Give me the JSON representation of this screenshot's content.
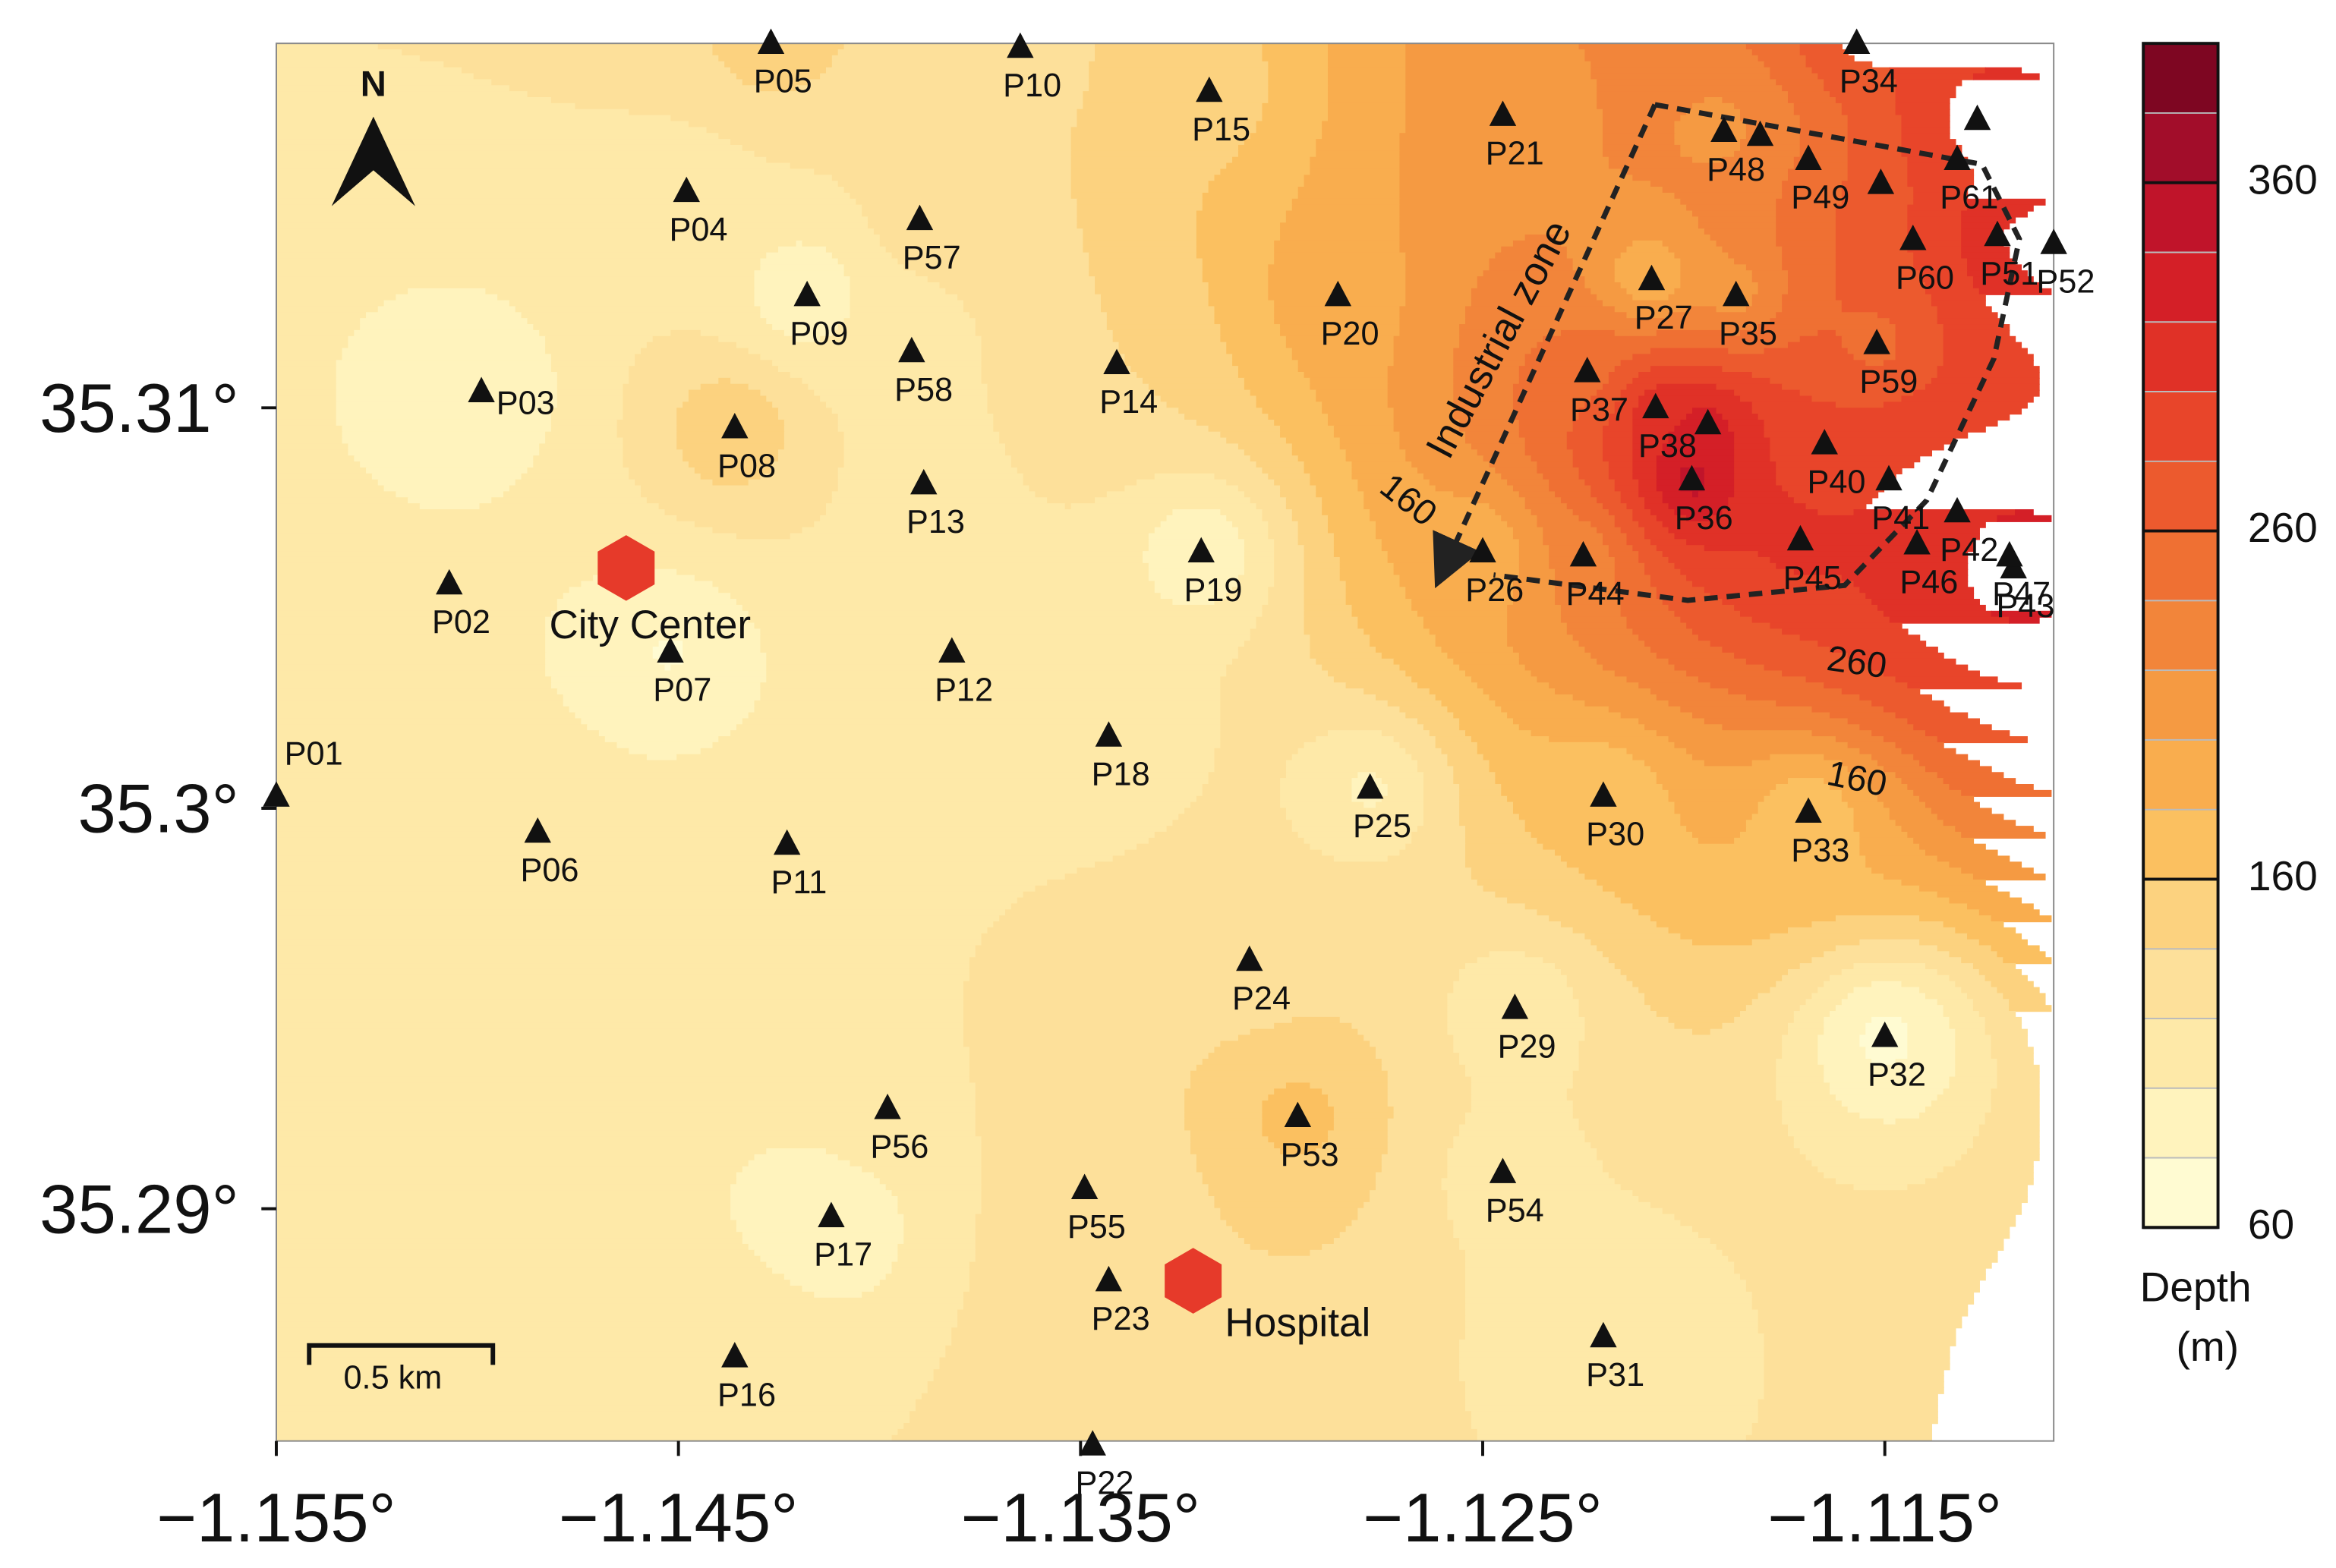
{
  "map": {
    "xlim": [
      -1.155,
      -1.1108
    ],
    "ylim": [
      35.2842,
      35.3191
    ],
    "xticks": [
      {
        "value": -1.155,
        "label": "−1.155°"
      },
      {
        "value": -1.145,
        "label": "−1.145°"
      },
      {
        "value": -1.135,
        "label": "−1.135°"
      },
      {
        "value": -1.125,
        "label": "−1.125°"
      },
      {
        "value": -1.115,
        "label": "−1.115°"
      }
    ],
    "yticks": [
      {
        "value": 35.31,
        "label": "35.31°"
      },
      {
        "value": 35.3,
        "label": "35.3°"
      },
      {
        "value": 35.29,
        "label": "35.29°"
      }
    ],
    "north_label": "N",
    "scale_bar_label": "0.5 km",
    "zone_label": "Industrial zone",
    "contour_labels": [
      "160",
      "260",
      "160"
    ],
    "landmarks": [
      {
        "label": "City Center",
        "lon": -1.1463,
        "lat": 35.306,
        "color": "#e63a2a"
      },
      {
        "label": "Hospital",
        "lon": -1.1322,
        "lat": 35.2882,
        "color": "#e63a2a"
      }
    ],
    "stations": [
      {
        "label": "P01",
        "lon": -1.155,
        "lat": 35.3003,
        "depth": 110
      },
      {
        "label": "P02",
        "lon": -1.1507,
        "lat": 35.3056,
        "depth": 100
      },
      {
        "label": "P03",
        "lon": -1.1499,
        "lat": 35.3104,
        "depth": 85
      },
      {
        "label": "P04",
        "lon": -1.1448,
        "lat": 35.3154,
        "depth": 110
      },
      {
        "label": "P05",
        "lon": -1.1427,
        "lat": 35.3191,
        "depth": 150
      },
      {
        "label": "P06",
        "lon": -1.1485,
        "lat": 35.2994,
        "depth": 110
      },
      {
        "label": "P07",
        "lon": -1.1452,
        "lat": 35.3039,
        "depth": 75
      },
      {
        "label": "P08",
        "lon": -1.1436,
        "lat": 35.3095,
        "depth": 165
      },
      {
        "label": "P09",
        "lon": -1.1418,
        "lat": 35.3128,
        "depth": 75
      },
      {
        "label": "P10",
        "lon": -1.1365,
        "lat": 35.319,
        "depth": 130
      },
      {
        "label": "P11",
        "lon": -1.1423,
        "lat": 35.2991,
        "depth": 110
      },
      {
        "label": "P12",
        "lon": -1.1382,
        "lat": 35.3039,
        "depth": 100
      },
      {
        "label": "P13",
        "lon": -1.1389,
        "lat": 35.3081,
        "depth": 110
      },
      {
        "label": "P14",
        "lon": -1.1341,
        "lat": 35.3111,
        "depth": 140
      },
      {
        "label": "P15",
        "lon": -1.1318,
        "lat": 35.3179,
        "depth": 150
      },
      {
        "label": "P16",
        "lon": -1.1436,
        "lat": 35.2863,
        "depth": 120
      },
      {
        "label": "P17",
        "lon": -1.1412,
        "lat": 35.2898,
        "depth": 75
      },
      {
        "label": "P18",
        "lon": -1.1343,
        "lat": 35.3018,
        "depth": 100
      },
      {
        "label": "P19",
        "lon": -1.132,
        "lat": 35.3064,
        "depth": 75
      },
      {
        "label": "P20",
        "lon": -1.1286,
        "lat": 35.3128,
        "depth": 190
      },
      {
        "label": "P21",
        "lon": -1.1245,
        "lat": 35.3173,
        "depth": 200
      },
      {
        "label": "P22",
        "lon": -1.1347,
        "lat": 35.2841,
        "depth": 130
      },
      {
        "label": "P23",
        "lon": -1.1343,
        "lat": 35.2882,
        "depth": 140
      },
      {
        "label": "P24",
        "lon": -1.1308,
        "lat": 35.2962,
        "depth": 130
      },
      {
        "label": "P25",
        "lon": -1.1278,
        "lat": 35.3005,
        "depth": 90
      },
      {
        "label": "P26",
        "lon": -1.125,
        "lat": 35.3064,
        "depth": 170
      },
      {
        "label": "P27",
        "lon": -1.1208,
        "lat": 35.3132,
        "depth": 150
      },
      {
        "label": "P29",
        "lon": -1.1242,
        "lat": 35.295,
        "depth": 100
      },
      {
        "label": "P30",
        "lon": -1.122,
        "lat": 35.3003,
        "depth": 160
      },
      {
        "label": "P31",
        "lon": -1.122,
        "lat": 35.2868,
        "depth": 100
      },
      {
        "label": "P32",
        "lon": -1.115,
        "lat": 35.2943,
        "depth": 70
      },
      {
        "label": "P33",
        "lon": -1.1169,
        "lat": 35.2999,
        "depth": 160
      },
      {
        "label": "P34",
        "lon": -1.1157,
        "lat": 35.3191,
        "depth": 290
      },
      {
        "label": "P35",
        "lon": -1.1187,
        "lat": 35.3128,
        "depth": 190
      },
      {
        "label": "P36",
        "lon": -1.1198,
        "lat": 35.3082,
        "depth": 380
      },
      {
        "label": "P37",
        "lon": -1.1224,
        "lat": 35.3109,
        "depth": 240
      },
      {
        "label": "P38",
        "lon": -1.1207,
        "lat": 35.31,
        "depth": 330
      },
      {
        "label": "P40",
        "lon": -1.1165,
        "lat": 35.3091,
        "depth": 280
      },
      {
        "label": "P41",
        "lon": -1.1149,
        "lat": 35.3082,
        "depth": 300
      },
      {
        "label": "P42",
        "lon": -1.1132,
        "lat": 35.3074,
        "depth": 320
      },
      {
        "label": "P43",
        "lon": -1.1118,
        "lat": 35.306,
        "depth": 340
      },
      {
        "label": "P44",
        "lon": -1.1225,
        "lat": 35.3063,
        "depth": 220
      },
      {
        "label": "P45",
        "lon": -1.1171,
        "lat": 35.3067,
        "depth": 310
      },
      {
        "label": "P46",
        "lon": -1.1142,
        "lat": 35.3066,
        "depth": 320
      },
      {
        "label": "P47",
        "lon": -1.1119,
        "lat": 35.3063,
        "depth": 330
      },
      {
        "label": "P48",
        "lon": -1.119,
        "lat": 35.3169,
        "depth": 200
      },
      {
        "label": "P49",
        "lon": -1.1169,
        "lat": 35.3162,
        "depth": 240
      },
      {
        "label": "P51",
        "lon": -1.1122,
        "lat": 35.3143,
        "depth": 330
      },
      {
        "label": "P52",
        "lon": -1.1108,
        "lat": 35.3141,
        "depth": 350
      },
      {
        "label": "P53",
        "lon": -1.1296,
        "lat": 35.2923,
        "depth": 170
      },
      {
        "label": "P54",
        "lon": -1.1245,
        "lat": 35.2909,
        "depth": 110
      },
      {
        "label": "P55",
        "lon": -1.1349,
        "lat": 35.2905,
        "depth": 125
      },
      {
        "label": "P56",
        "lon": -1.1398,
        "lat": 35.2925,
        "depth": 120
      },
      {
        "label": "P57",
        "lon": -1.139,
        "lat": 35.3147,
        "depth": 130
      },
      {
        "label": "P58",
        "lon": -1.1392,
        "lat": 35.3114,
        "depth": 110
      },
      {
        "label": "P59",
        "lon": -1.1152,
        "lat": 35.3116,
        "depth": 240
      },
      {
        "label": "P60",
        "lon": -1.1143,
        "lat": 35.3142,
        "depth": 280
      },
      {
        "label": "P61",
        "lon": -1.1132,
        "lat": 35.3162,
        "depth": 300
      },
      {
        "label": null,
        "lon": -1.1194,
        "lat": 35.3096,
        "depth": 350
      },
      {
        "label": null,
        "lon": -1.1181,
        "lat": 35.3168,
        "depth": 220
      },
      {
        "label": null,
        "lon": -1.1151,
        "lat": 35.3156,
        "depth": 270
      },
      {
        "label": null,
        "lon": -1.1127,
        "lat": 35.3172,
        "depth": 320
      }
    ],
    "colorbar": {
      "lim": [
        60,
        400
      ],
      "ticks": [
        60,
        160,
        260,
        360
      ],
      "label": [
        "Depth",
        "(m)"
      ],
      "levels": [
        60,
        80,
        100,
        120,
        140,
        160,
        180,
        200,
        220,
        240,
        260,
        280,
        300,
        320,
        340,
        360,
        380,
        400
      ],
      "colors": [
        "#fffbd2",
        "#fff3bd",
        "#fee9a8",
        "#fde09a",
        "#fcd27f",
        "#fbc060",
        "#f9ad4e",
        "#f59a42",
        "#f2853a",
        "#ef7033",
        "#ec5a2e",
        "#e8452a",
        "#e03127",
        "#d41f27",
        "#c0142a",
        "#a20d2a",
        "#7e0622"
      ]
    }
  }
}
